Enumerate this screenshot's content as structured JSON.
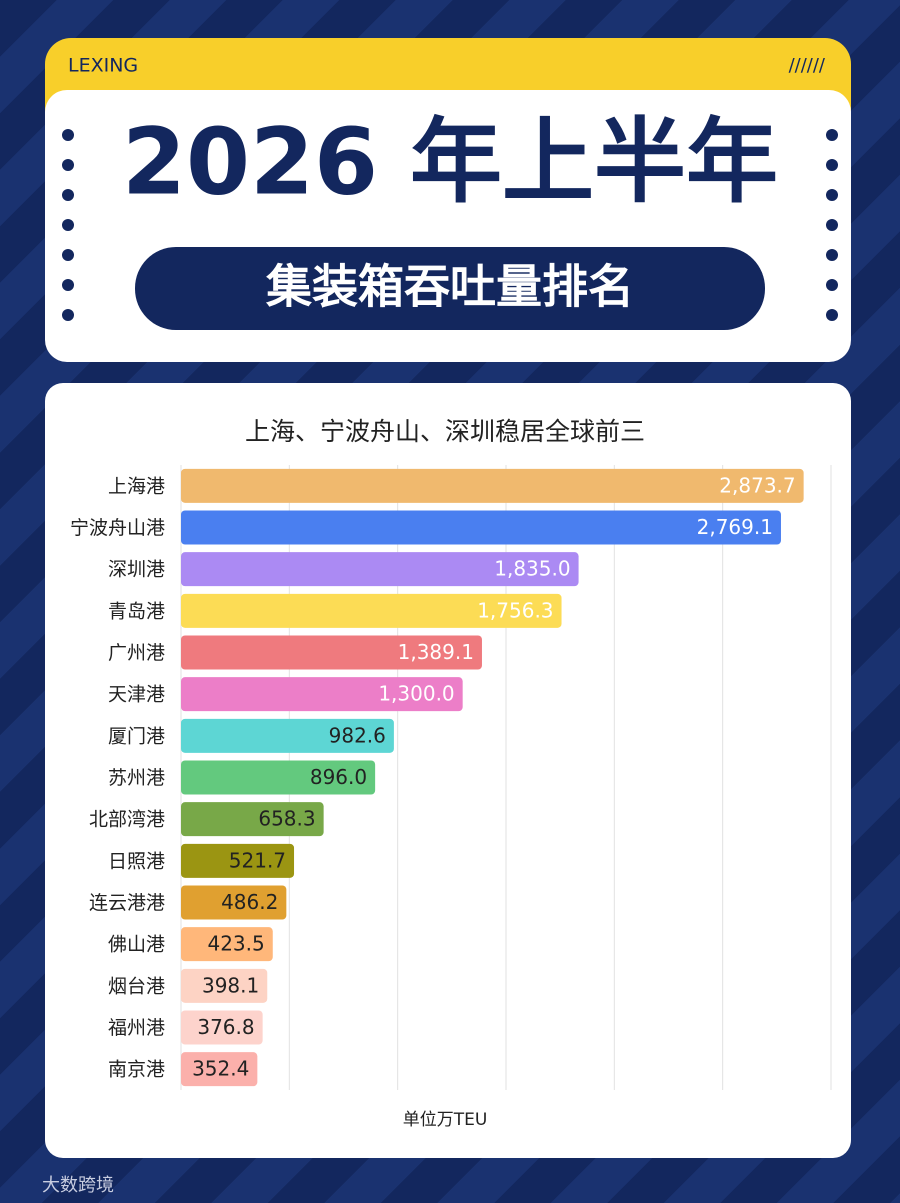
{
  "header": {
    "brand": "LEXING",
    "mark": "//////",
    "title": "2026 年上半年",
    "subtitle": "集装箱吞吐量排名"
  },
  "chart_data": {
    "type": "hbar",
    "title": "上海、宁波舟山、深圳稳居全球前三",
    "unit_label": "单位万TEU",
    "categories": [
      "上海港",
      "宁波舟山港",
      "深圳港",
      "青岛港",
      "广州港",
      "天津港",
      "厦门港",
      "苏州港",
      "北部湾港",
      "日照港",
      "连云港港",
      "佛山港",
      "烟台港",
      "福州港",
      "南京港"
    ],
    "values": [
      2873.7,
      2769.1,
      1835.0,
      1756.3,
      1389.1,
      1300.0,
      982.6,
      896.0,
      658.3,
      521.7,
      486.2,
      423.5,
      398.1,
      376.8,
      352.4
    ],
    "value_labels": [
      "2,873.7",
      "2,769.1",
      "1,835.0",
      "1,756.3",
      "1,389.1",
      "1,300.0",
      "982.6",
      "896.0",
      "658.3",
      "521.7",
      "486.2",
      "423.5",
      "398.1",
      "376.8",
      "352.4"
    ],
    "colors": [
      "#f0b96e",
      "#4a7ff0",
      "#ab8af3",
      "#fcdc55",
      "#ef7a7e",
      "#ec7ec8",
      "#5dd6d4",
      "#63c97e",
      "#78a848",
      "#9b9512",
      "#e0a030",
      "#ffb77a",
      "#fdd3c4",
      "#fdd3cc",
      "#fbb0ab"
    ],
    "value_label_colors": [
      "#ffffff",
      "#ffffff",
      "#ffffff",
      "#ffffff",
      "#ffffff",
      "#ffffff",
      "#222222",
      "#222222",
      "#222222",
      "#222222",
      "#222222",
      "#222222",
      "#222222",
      "#222222",
      "#222222"
    ],
    "xlim": [
      0,
      3000
    ],
    "xticks": [
      0,
      500,
      1000,
      1500,
      2000,
      2500,
      3000
    ],
    "grid": true
  },
  "footer": {
    "watermark": "大数跨境"
  }
}
